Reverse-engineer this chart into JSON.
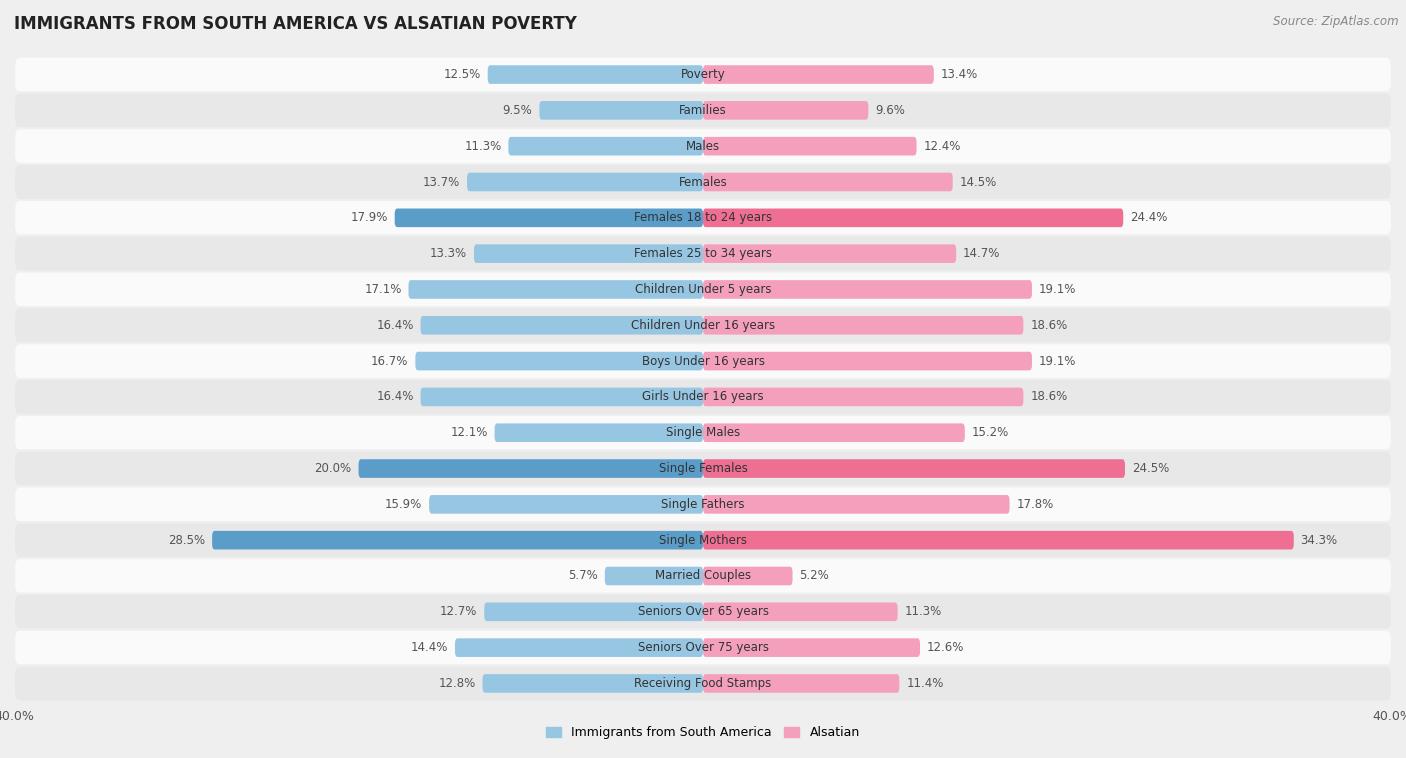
{
  "title": "IMMIGRANTS FROM SOUTH AMERICA VS ALSATIAN POVERTY",
  "source": "Source: ZipAtlas.com",
  "categories": [
    "Poverty",
    "Families",
    "Males",
    "Females",
    "Females 18 to 24 years",
    "Females 25 to 34 years",
    "Children Under 5 years",
    "Children Under 16 years",
    "Boys Under 16 years",
    "Girls Under 16 years",
    "Single Males",
    "Single Females",
    "Single Fathers",
    "Single Mothers",
    "Married Couples",
    "Seniors Over 65 years",
    "Seniors Over 75 years",
    "Receiving Food Stamps"
  ],
  "left_values": [
    12.5,
    9.5,
    11.3,
    13.7,
    17.9,
    13.3,
    17.1,
    16.4,
    16.7,
    16.4,
    12.1,
    20.0,
    15.9,
    28.5,
    5.7,
    12.7,
    14.4,
    12.8
  ],
  "right_values": [
    13.4,
    9.6,
    12.4,
    14.5,
    24.4,
    14.7,
    19.1,
    18.6,
    19.1,
    18.6,
    15.2,
    24.5,
    17.8,
    34.3,
    5.2,
    11.3,
    12.6,
    11.4
  ],
  "left_color_normal": "#97C6E3",
  "left_color_highlight": "#5B9DC9",
  "right_color_normal": "#F4A0BC",
  "right_color_highlight": "#EE6F92",
  "highlight_rows": [
    4,
    11,
    13
  ],
  "left_label": "Immigrants from South America",
  "right_label": "Alsatian",
  "axis_max": 40.0,
  "bg_color": "#EFEFEF",
  "row_color_even": "#FAFAFA",
  "row_color_odd": "#E8E8E8",
  "title_fontsize": 12,
  "source_fontsize": 8.5,
  "cat_fontsize": 8.5,
  "val_fontsize": 8.5,
  "legend_fontsize": 9,
  "bar_height": 0.52
}
